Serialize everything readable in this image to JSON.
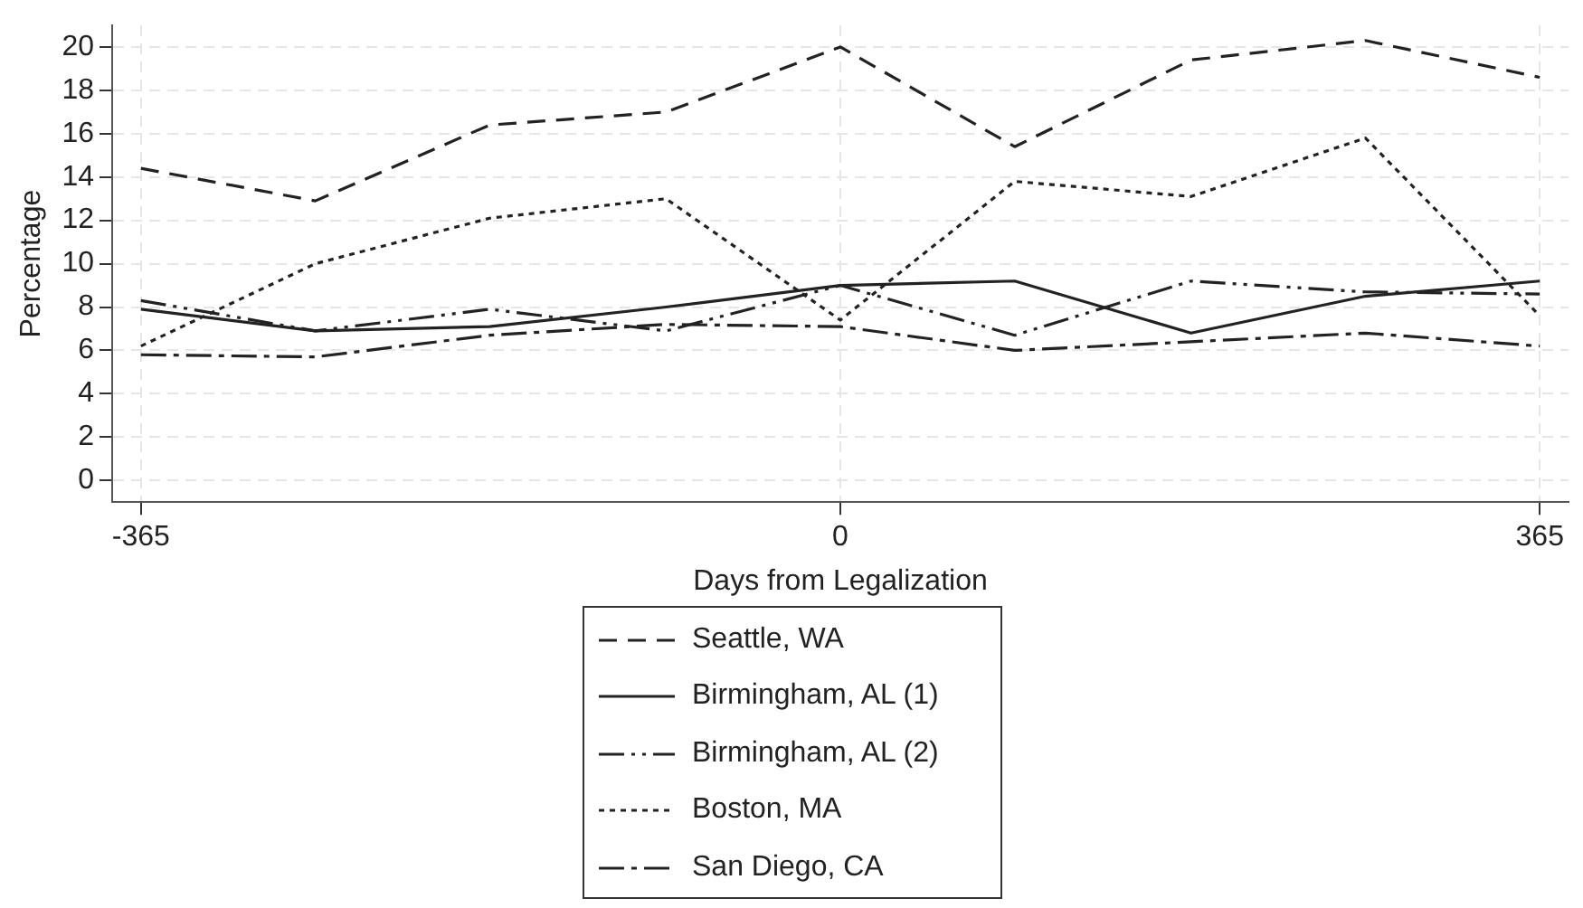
{
  "chart_data": {
    "type": "line",
    "xlabel": "Days from Legalization",
    "ylabel": "Percentage",
    "x": [
      -365,
      -274,
      -183,
      -91,
      0,
      91,
      183,
      274,
      365
    ],
    "xlim": [
      -380,
      380
    ],
    "xticks": [
      -365,
      0,
      365
    ],
    "ylim": [
      -1,
      21
    ],
    "yticks": [
      0,
      2,
      4,
      6,
      8,
      10,
      12,
      14,
      16,
      18,
      20
    ],
    "grid": true,
    "legend": "bottom",
    "marker": "none",
    "series": [
      {
        "name": "Seattle, WA",
        "color": "#222222",
        "line_style": "dashed",
        "values": [
          14.4,
          12.9,
          16.4,
          17.0,
          20.0,
          15.4,
          19.4,
          20.3,
          18.6
        ]
      },
      {
        "name": "Birmingham, AL (1)",
        "color": "#222222",
        "line_style": "solid",
        "values": [
          7.9,
          6.9,
          7.1,
          8.0,
          9.0,
          9.2,
          6.8,
          8.5,
          9.2
        ]
      },
      {
        "name": "Birmingham, AL (2)",
        "color": "#222222",
        "line_style": "dashdotdot",
        "values": [
          8.3,
          6.9,
          7.9,
          6.9,
          9.0,
          6.7,
          9.2,
          8.7,
          8.6
        ]
      },
      {
        "name": "Boston, MA",
        "color": "#222222",
        "line_style": "dotted",
        "values": [
          6.2,
          10.0,
          12.1,
          13.0,
          7.4,
          13.8,
          13.1,
          15.8,
          7.6
        ]
      },
      {
        "name": "San Diego, CA",
        "color": "#222222",
        "line_style": "dashdot",
        "values": [
          5.8,
          5.7,
          6.7,
          7.2,
          7.1,
          6.0,
          6.4,
          6.8,
          6.2
        ]
      }
    ]
  }
}
